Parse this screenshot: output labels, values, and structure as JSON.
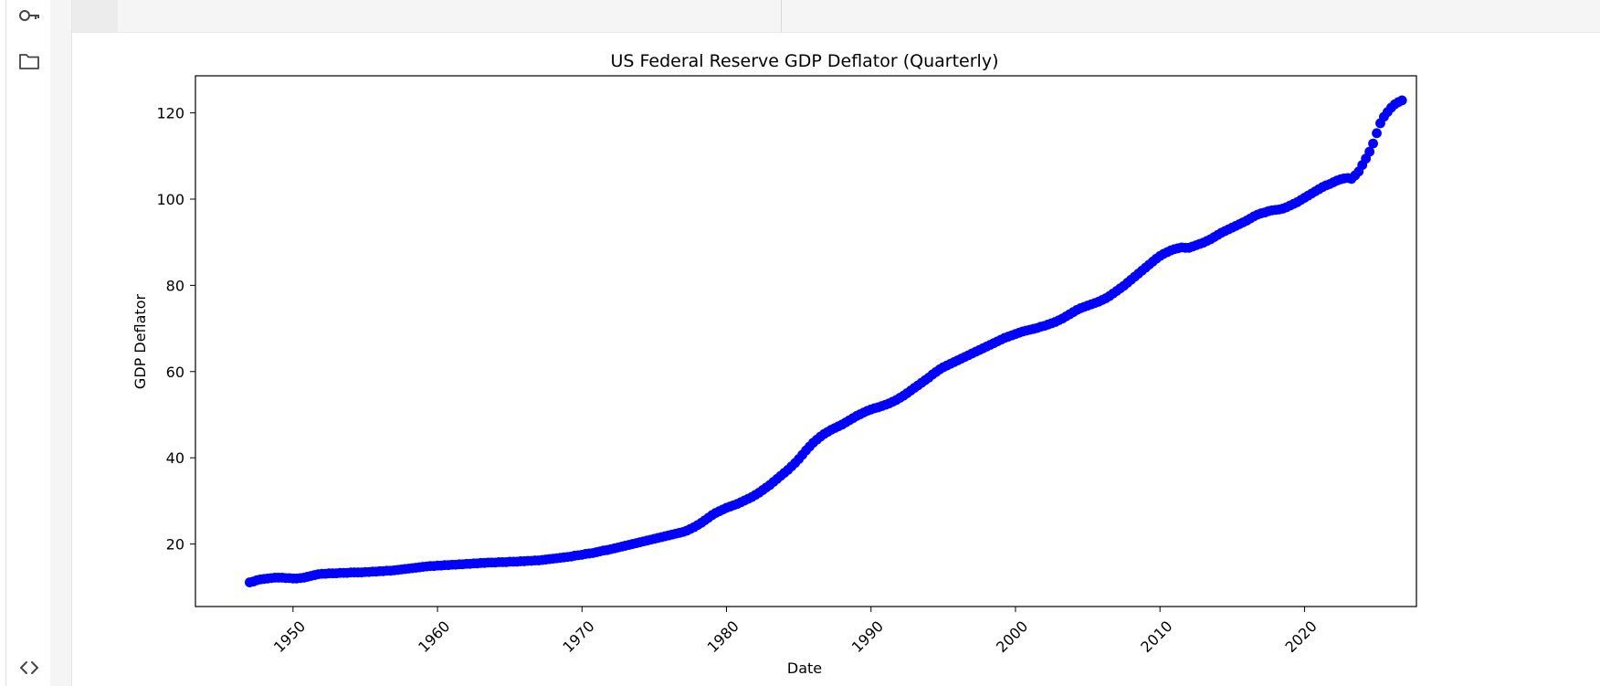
{
  "sidebar": {
    "icons": [
      "key-icon",
      "folder-icon",
      "code-icon"
    ]
  },
  "chart_data": {
    "type": "scatter",
    "title": "US Federal Reserve GDP Deflator (Quarterly)",
    "xlabel": "Date",
    "ylabel": "GDP Deflator",
    "x_ticks": [
      "1950",
      "1960",
      "1970",
      "1980",
      "1990",
      "2000",
      "2010",
      "2020"
    ],
    "y_ticks": [
      "20",
      "40",
      "60",
      "80",
      "100",
      "120"
    ],
    "xlim": [
      "1943-04-01",
      "2027-10-01"
    ],
    "ylim": [
      5.5,
      128.6
    ],
    "grid": false,
    "marker_color": "#0000ff",
    "series": [
      {
        "x_start": "1947-01-01",
        "frequency": "quarterly",
        "values": [
          11.1,
          11.3,
          11.6,
          11.8,
          11.9,
          12.0,
          12.1,
          12.2,
          12.2,
          12.2,
          12.1,
          12.1,
          12.0,
          12.0,
          12.1,
          12.2,
          12.4,
          12.6,
          12.8,
          13.0,
          13.1,
          13.1,
          13.2,
          13.2,
          13.2,
          13.3,
          13.3,
          13.3,
          13.4,
          13.4,
          13.4,
          13.4,
          13.5,
          13.5,
          13.6,
          13.6,
          13.7,
          13.7,
          13.8,
          13.8,
          13.9,
          14.0,
          14.1,
          14.2,
          14.3,
          14.4,
          14.5,
          14.6,
          14.7,
          14.8,
          14.9,
          14.9,
          15.0,
          15.0,
          15.1,
          15.1,
          15.2,
          15.2,
          15.3,
          15.3,
          15.4,
          15.4,
          15.5,
          15.5,
          15.6,
          15.6,
          15.7,
          15.7,
          15.7,
          15.8,
          15.8,
          15.8,
          15.9,
          15.9,
          15.9,
          16.0,
          16.0,
          16.1,
          16.1,
          16.2,
          16.2,
          16.3,
          16.4,
          16.5,
          16.6,
          16.7,
          16.8,
          16.9,
          17.0,
          17.1,
          17.3,
          17.4,
          17.5,
          17.7,
          17.8,
          17.9,
          18.1,
          18.3,
          18.5,
          18.6,
          18.8,
          19.0,
          19.2,
          19.4,
          19.6,
          19.8,
          20.0,
          20.2,
          20.4,
          20.6,
          20.8,
          21.0,
          21.2,
          21.4,
          21.6,
          21.8,
          22.0,
          22.2,
          22.4,
          22.6,
          22.8,
          23.1,
          23.5,
          23.9,
          24.4,
          24.9,
          25.5,
          26.1,
          26.7,
          27.2,
          27.6,
          28.0,
          28.4,
          28.7,
          29.0,
          29.3,
          29.7,
          30.1,
          30.5,
          30.9,
          31.4,
          31.9,
          32.5,
          33.1,
          33.7,
          34.4,
          35.1,
          35.8,
          36.5,
          37.2,
          38.0,
          38.8,
          39.7,
          40.7,
          41.7,
          42.6,
          43.5,
          44.2,
          44.9,
          45.5,
          46.0,
          46.5,
          46.9,
          47.3,
          47.7,
          48.2,
          48.7,
          49.2,
          49.7,
          50.1,
          50.5,
          50.9,
          51.2,
          51.5,
          51.7,
          52.0,
          52.3,
          52.6,
          53.0,
          53.4,
          53.9,
          54.4,
          55.0,
          55.6,
          56.2,
          56.8,
          57.4,
          58.0,
          58.6,
          59.3,
          59.9,
          60.5,
          61.0,
          61.4,
          61.8,
          62.2,
          62.6,
          63.0,
          63.4,
          63.8,
          64.2,
          64.6,
          65.0,
          65.4,
          65.8,
          66.2,
          66.6,
          67.0,
          67.4,
          67.8,
          68.1,
          68.4,
          68.7,
          69.0,
          69.3,
          69.5,
          69.7,
          69.9,
          70.1,
          70.4,
          70.6,
          70.9,
          71.2,
          71.5,
          71.9,
          72.3,
          72.8,
          73.3,
          73.8,
          74.3,
          74.7,
          75.0,
          75.3,
          75.6,
          75.9,
          76.2,
          76.6,
          77.0,
          77.5,
          78.1,
          78.7,
          79.3,
          79.9,
          80.6,
          81.3,
          82.0,
          82.7,
          83.4,
          84.1,
          84.8,
          85.5,
          86.2,
          86.8,
          87.3,
          87.7,
          88.1,
          88.4,
          88.6,
          88.8,
          88.7,
          88.7,
          89.0,
          89.3,
          89.6,
          89.9,
          90.3,
          90.7,
          91.2,
          91.7,
          92.2,
          92.6,
          93.0,
          93.4,
          93.8,
          94.2,
          94.6,
          95.0,
          95.5,
          96.0,
          96.4,
          96.7,
          96.9,
          97.2,
          97.4,
          97.5,
          97.6,
          97.8,
          98.1,
          98.5,
          98.9,
          99.3,
          99.8,
          100.3,
          100.8,
          101.3,
          101.8,
          102.3,
          102.8,
          103.2,
          103.5,
          103.9,
          104.3,
          104.6,
          104.8,
          104.9,
          104.7,
          105.5,
          106.4,
          107.9,
          109.4,
          111.0,
          112.9,
          115.3,
          117.6,
          119.1,
          120.2,
          121.2,
          122.0,
          122.5,
          122.9
        ]
      }
    ]
  }
}
